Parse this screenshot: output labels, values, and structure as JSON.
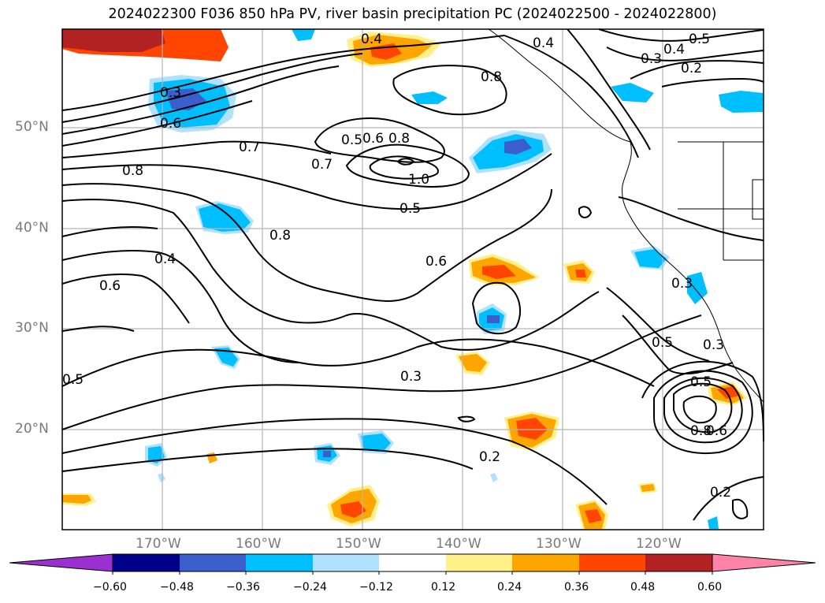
{
  "title": "2024022300 F036 850 hPa PV, river basin precipitation PC (2024022500 - 2024022800)",
  "map": {
    "projection": "cylindrical",
    "lon_range": [
      -180,
      -110
    ],
    "lat_range": [
      10,
      60
    ],
    "lat_labels": [
      "50°N",
      "40°N",
      "30°N",
      "20°N"
    ],
    "lon_labels": [
      "170°W",
      "160°W",
      "150°W",
      "140°W",
      "130°W",
      "120°W"
    ],
    "contour_labels": [
      "0.4",
      "0.4",
      "0.3",
      "0.6",
      "0.7",
      "0.8",
      "0.7",
      "0.5",
      "0.6",
      "0.8",
      "1.0",
      "0.5",
      "0.8",
      "0.6",
      "0.4",
      "0.6",
      "0.5",
      "0.3",
      "0.2",
      "0.5",
      "0.4",
      "0.3",
      "0.2",
      "0.8",
      "0.3",
      "0.5",
      "0.3",
      "0.5",
      "0.8",
      "0.6",
      "0.2"
    ],
    "colors": {
      "neg_0.60": "#9b30d0",
      "neg_0.48": "#00008b",
      "neg_0.36": "#3a5fcd",
      "neg_0.24": "#00bfff",
      "neg_0.12": "#b0e2ff",
      "pos_0.12": "#fff08a",
      "pos_0.24": "#ffa500",
      "pos_0.36": "#ff4500",
      "pos_0.48": "#b22222",
      "pos_0.60": "#ff82ab"
    }
  },
  "colorbar": {
    "ticks": [
      "−0.60",
      "−0.48",
      "−0.36",
      "−0.24",
      "−0.12",
      "0.12",
      "0.24",
      "0.36",
      "0.48",
      "0.60"
    ],
    "colors": [
      "#9b30d0",
      "#00008b",
      "#3a5fcd",
      "#00bfff",
      "#b0e2ff",
      "#ffffff",
      "#fff08a",
      "#ffa500",
      "#ff4500",
      "#b22222",
      "#ff82ab"
    ]
  }
}
